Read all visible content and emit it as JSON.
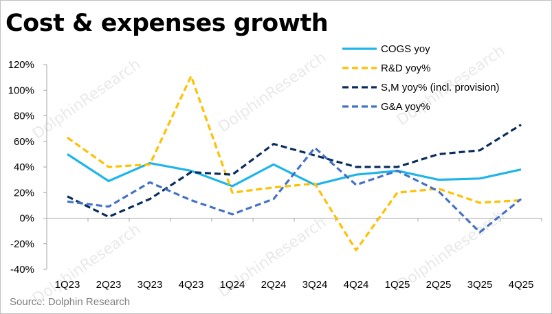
{
  "title": "Cost & expenses growth",
  "source": "Source: Dolphin Research",
  "watermark": "DolphinResearch",
  "chart_data": {
    "type": "line",
    "title": "Cost & expenses growth",
    "xlabel": "",
    "ylabel": "",
    "ylim": [
      -40,
      120
    ],
    "ytick_step": 20,
    "y_tick_labels": [
      "-40%",
      "-20%",
      "0%",
      "20%",
      "40%",
      "60%",
      "80%",
      "100%",
      "120%"
    ],
    "categories": [
      "1Q23",
      "2Q23",
      "3Q23",
      "4Q23",
      "1Q24",
      "2Q24",
      "3Q24",
      "4Q24",
      "1Q25",
      "2Q25",
      "3Q25",
      "4Q25"
    ],
    "legend_position": "top-right",
    "grid": false,
    "series": [
      {
        "name": "COGS yoy",
        "color": "#1fb5e9",
        "style": "solid",
        "values": [
          50,
          29,
          43,
          37,
          25,
          42,
          26,
          34,
          37,
          30,
          31,
          38
        ]
      },
      {
        "name": "R&D yoy%",
        "color": "#ffc000",
        "style": "dash",
        "values": [
          63,
          40,
          42,
          111,
          20,
          24,
          27,
          -25,
          20,
          23,
          12,
          14
        ]
      },
      {
        "name": "S,M yoy% (incl. provision)",
        "color": "#0a2d5c",
        "style": "dash",
        "values": [
          17,
          1,
          15,
          36,
          34,
          58,
          49,
          40,
          40,
          50,
          53,
          73
        ]
      },
      {
        "name": "G&A yoy%",
        "color": "#4472c4",
        "style": "dash",
        "values": [
          13,
          9,
          28,
          14,
          3,
          15,
          55,
          26,
          37,
          21,
          -11,
          15
        ]
      }
    ]
  }
}
